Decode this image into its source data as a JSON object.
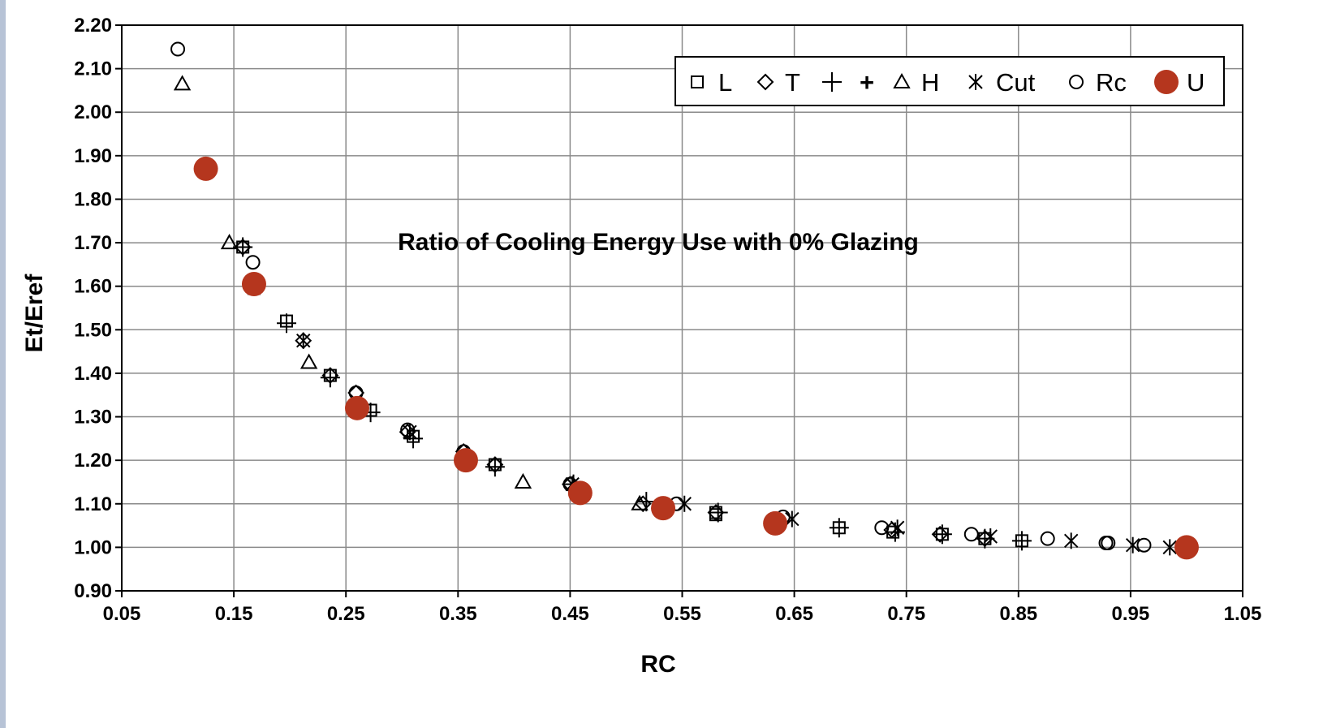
{
  "chart_data": {
    "type": "scatter",
    "title": "",
    "annotation": "Ratio of Cooling Energy Use with 0% Glazing",
    "xlabel": "RC",
    "ylabel": "Et/Eref",
    "xlim": [
      0.05,
      1.05
    ],
    "ylim": [
      0.9,
      2.2
    ],
    "xticks": [
      "0.05",
      "0.15",
      "0.25",
      "0.35",
      "0.45",
      "0.55",
      "0.65",
      "0.75",
      "0.85",
      "0.95",
      "1.05"
    ],
    "yticks": [
      "0.90",
      "1.00",
      "1.10",
      "1.20",
      "1.30",
      "1.40",
      "1.50",
      "1.60",
      "1.70",
      "1.80",
      "1.90",
      "2.00",
      "2.10",
      "2.20"
    ],
    "grid": true,
    "legend_position": "top-right",
    "series": [
      {
        "name": "L",
        "marker": "square",
        "color": "#000000",
        "x": [
          0.158,
          0.168,
          0.197,
          0.236,
          0.272,
          0.31,
          0.383,
          0.58,
          0.58,
          0.69,
          0.738,
          0.782,
          0.82,
          0.853
        ],
        "y": [
          1.69,
          1.595,
          1.52,
          1.395,
          1.315,
          1.255,
          1.19,
          1.08,
          1.075,
          1.045,
          1.035,
          1.03,
          1.02,
          1.015
        ]
      },
      {
        "name": "T",
        "marker": "diamond",
        "color": "#000000",
        "x": [
          0.158,
          0.212,
          0.236,
          0.259,
          0.305,
          0.355,
          0.383,
          0.45,
          0.515,
          0.58,
          0.737,
          0.78,
          0.82
        ],
        "y": [
          1.69,
          1.475,
          1.395,
          1.355,
          1.265,
          1.22,
          1.19,
          1.145,
          1.1,
          1.08,
          1.04,
          1.03,
          1.02
        ]
      },
      {
        "name": "+",
        "marker": "plus",
        "color": "#000000",
        "x": [
          0.158,
          0.197,
          0.236,
          0.272,
          0.31,
          0.383,
          0.453,
          0.518,
          0.582,
          0.69,
          0.74,
          0.782,
          0.82,
          0.853
        ],
        "y": [
          1.69,
          1.515,
          1.39,
          1.31,
          1.25,
          1.185,
          1.145,
          1.105,
          1.08,
          1.045,
          1.035,
          1.03,
          1.02,
          1.015
        ]
      },
      {
        "name": "H",
        "marker": "triangle",
        "color": "#000000",
        "x": [
          0.104,
          0.146,
          0.217,
          0.408,
          0.512
        ],
        "y": [
          2.065,
          1.7,
          1.425,
          1.15,
          1.1
        ]
      },
      {
        "name": "Cut",
        "marker": "asterisk",
        "color": "#000000",
        "x": [
          0.212,
          0.307,
          0.452,
          0.552,
          0.648,
          0.742,
          0.825,
          0.897,
          0.952,
          0.985
        ],
        "y": [
          1.475,
          1.265,
          1.145,
          1.1,
          1.065,
          1.045,
          1.025,
          1.015,
          1.005,
          1.0
        ]
      },
      {
        "name": "Rc",
        "marker": "circle",
        "color": "#000000",
        "x": [
          0.1,
          0.167,
          0.259,
          0.305,
          0.355,
          0.45,
          0.545,
          0.64,
          0.728,
          0.808,
          0.876,
          0.928,
          0.93,
          0.962
        ],
        "y": [
          2.145,
          1.655,
          1.355,
          1.27,
          1.22,
          1.145,
          1.1,
          1.07,
          1.045,
          1.03,
          1.02,
          1.01,
          1.01,
          1.005
        ]
      },
      {
        "name": "U",
        "marker": "filled-circle",
        "color": "#b5361e",
        "x": [
          0.125,
          0.168,
          0.26,
          0.357,
          0.459,
          0.533,
          0.633,
          1.0
        ],
        "y": [
          1.87,
          1.605,
          1.32,
          1.2,
          1.125,
          1.09,
          1.055,
          1.0
        ]
      }
    ]
  }
}
